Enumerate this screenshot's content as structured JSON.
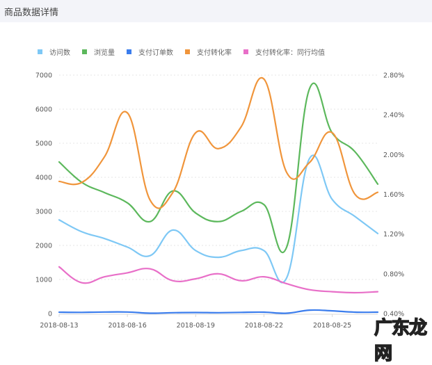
{
  "header": {
    "title": "商品数据详情"
  },
  "legend": [
    {
      "label": "访问数",
      "color": "#7ec8f5"
    },
    {
      "label": "浏览量",
      "color": "#5cb85c"
    },
    {
      "label": "支付订单数",
      "color": "#3b7ded"
    },
    {
      "label": "支付转化率",
      "color": "#f0953b"
    },
    {
      "label": "支付转化率：同行均值",
      "color": "#e86fc8"
    }
  ],
  "watermark": "广东龙网",
  "chart_data": {
    "type": "line",
    "title": "商品数据详情",
    "x": [
      "2018-08-13",
      "2018-08-14",
      "2018-08-15",
      "2018-08-16",
      "2018-08-17",
      "2018-08-18",
      "2018-08-19",
      "2018-08-20",
      "2018-08-21",
      "2018-08-22",
      "2018-08-23",
      "2018-08-24",
      "2018-08-25",
      "2018-08-26",
      "2018-08-27"
    ],
    "x_tick_labels": [
      "2018-08-13",
      "2018-08-16",
      "2018-08-19",
      "2018-08-22",
      "2018-08-25"
    ],
    "y_left": {
      "ticks": [
        "0",
        "1000",
        "2000",
        "3000",
        "4000",
        "5000",
        "6000",
        "7000"
      ],
      "ylim": [
        0,
        7000
      ]
    },
    "y_right": {
      "ticks": [
        "0.40%",
        "0.80%",
        "1.20%",
        "1.60%",
        "2.00%",
        "2.40%",
        "2.80%"
      ],
      "ylim": [
        0.4,
        2.8
      ]
    },
    "grid": true,
    "legend_position": "top",
    "series": [
      {
        "name": "访问数",
        "axis": "left",
        "color": "#7ec8f5",
        "values": [
          2750,
          2400,
          2200,
          1950,
          1700,
          2450,
          1850,
          1650,
          1850,
          1850,
          1050,
          4550,
          3350,
          2850,
          2350
        ]
      },
      {
        "name": "浏览量",
        "axis": "left",
        "color": "#5cb85c",
        "values": [
          4450,
          3850,
          3550,
          3250,
          2700,
          3600,
          2950,
          2700,
          3000,
          3200,
          1950,
          6600,
          5300,
          4750,
          3800
        ]
      },
      {
        "name": "支付订单数",
        "axis": "left",
        "color": "#3b7ded",
        "values": [
          40,
          35,
          45,
          45,
          10,
          25,
          30,
          25,
          35,
          40,
          10,
          100,
          80,
          40,
          40
        ]
      },
      {
        "name": "支付转化率",
        "axis": "right",
        "color": "#f0953b",
        "values": [
          1.73,
          1.72,
          1.98,
          2.42,
          1.54,
          1.62,
          2.22,
          2.06,
          2.28,
          2.76,
          1.82,
          1.92,
          2.22,
          1.6,
          1.62
        ]
      },
      {
        "name": "支付转化率：同行均值",
        "axis": "right",
        "color": "#e86fc8",
        "values": [
          0.87,
          0.71,
          0.77,
          0.81,
          0.85,
          0.73,
          0.75,
          0.8,
          0.73,
          0.77,
          0.7,
          0.64,
          0.62,
          0.61,
          0.62
        ]
      }
    ]
  }
}
